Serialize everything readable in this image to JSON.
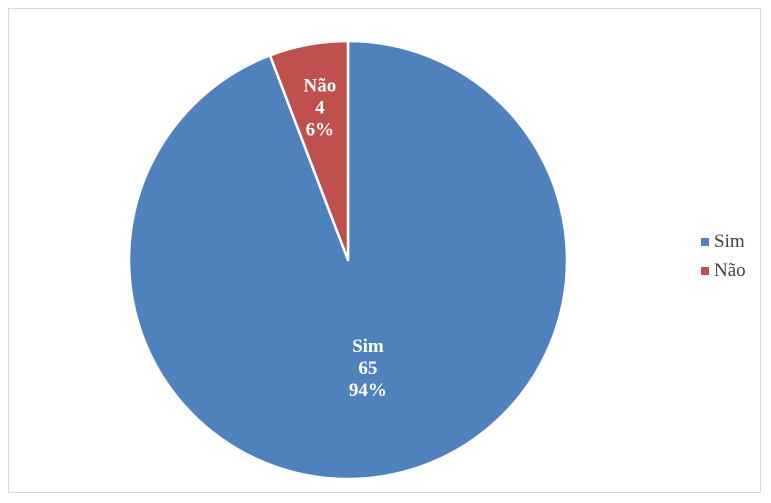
{
  "chart_data": {
    "type": "pie",
    "title": "",
    "categories": [
      "Sim",
      "Não"
    ],
    "values": [
      65,
      4
    ],
    "percentages": [
      "94%",
      "6%"
    ],
    "colors": [
      "#4F81BD",
      "#C0504D"
    ],
    "legend": {
      "position": "right",
      "entries": [
        "Sim",
        "Não"
      ]
    },
    "data_labels": [
      {
        "category": "Sim",
        "value": "65",
        "percent": "94%"
      },
      {
        "category": "Não",
        "value": "4",
        "percent": "6%"
      }
    ]
  }
}
